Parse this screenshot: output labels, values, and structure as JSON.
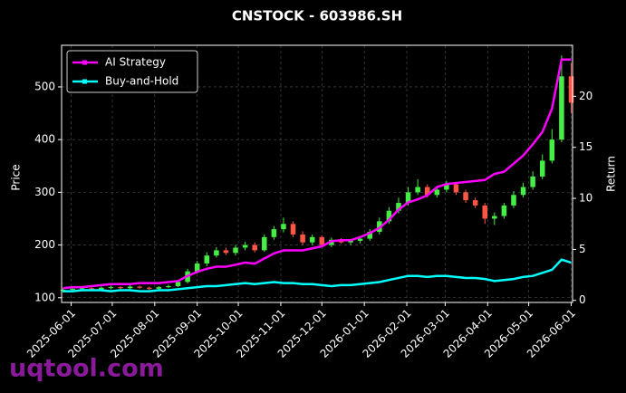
{
  "chart_data": {
    "type": "candlestick",
    "title": "CNSTOCK - 603986.SH",
    "ylabel": "Price",
    "y2label": "Return",
    "watermark": "uqtool.com",
    "x": [
      "2025-05-26",
      "2025-06-02",
      "2025-06-09",
      "2025-06-16",
      "2025-06-23",
      "2025-06-30",
      "2025-07-07",
      "2025-07-14",
      "2025-07-21",
      "2025-07-28",
      "2025-08-04",
      "2025-08-11",
      "2025-08-18",
      "2025-08-25",
      "2025-09-01",
      "2025-09-08",
      "2025-09-15",
      "2025-09-22",
      "2025-09-29",
      "2025-10-06",
      "2025-10-13",
      "2025-10-20",
      "2025-10-27",
      "2025-11-03",
      "2025-11-10",
      "2025-11-17",
      "2025-11-24",
      "2025-12-01",
      "2025-12-08",
      "2025-12-15",
      "2025-12-22",
      "2025-12-29",
      "2026-01-05",
      "2026-01-12",
      "2026-01-19",
      "2026-01-26",
      "2026-02-02",
      "2026-02-09",
      "2026-02-16",
      "2026-02-23",
      "2026-03-02",
      "2026-03-09",
      "2026-03-16",
      "2026-03-23",
      "2026-03-30",
      "2026-04-06",
      "2026-04-13",
      "2026-04-20",
      "2026-04-27",
      "2026-05-04",
      "2026-05-11",
      "2026-05-18",
      "2026-05-25",
      "2026-06-01"
    ],
    "open": [
      113,
      115,
      117,
      118,
      116,
      119,
      120,
      118,
      121,
      119,
      117,
      120,
      122,
      130,
      150,
      165,
      180,
      190,
      185,
      195,
      200,
      190,
      215,
      230,
      240,
      220,
      205,
      215,
      200,
      210,
      205,
      208,
      212,
      225,
      245,
      265,
      280,
      300,
      310,
      295,
      305,
      315,
      300,
      285,
      275,
      250,
      255,
      275,
      295,
      310,
      330,
      360,
      400,
      520
    ],
    "high": [
      118,
      119,
      120,
      120,
      121,
      123,
      122,
      124,
      123,
      121,
      122,
      125,
      133,
      155,
      170,
      186,
      196,
      195,
      200,
      206,
      205,
      220,
      236,
      252,
      245,
      226,
      220,
      218,
      214,
      213,
      211,
      215,
      230,
      252,
      272,
      290,
      310,
      325,
      315,
      312,
      322,
      320,
      305,
      290,
      280,
      262,
      280,
      302,
      318,
      340,
      372,
      420,
      560,
      545
    ],
    "low": [
      110,
      112,
      114,
      113,
      113,
      116,
      115,
      116,
      117,
      115,
      114,
      118,
      120,
      127,
      146,
      160,
      176,
      181,
      180,
      190,
      186,
      187,
      210,
      224,
      215,
      200,
      200,
      196,
      196,
      203,
      200,
      203,
      208,
      220,
      240,
      260,
      275,
      295,
      290,
      290,
      300,
      295,
      280,
      270,
      240,
      238,
      250,
      270,
      290,
      305,
      325,
      355,
      395,
      450
    ],
    "close": [
      115,
      117,
      118,
      116,
      119,
      120,
      118,
      121,
      119,
      117,
      120,
      122,
      130,
      150,
      165,
      180,
      190,
      185,
      195,
      200,
      190,
      215,
      230,
      240,
      220,
      205,
      215,
      200,
      210,
      205,
      208,
      212,
      225,
      245,
      265,
      280,
      300,
      310,
      295,
      305,
      315,
      300,
      285,
      275,
      250,
      255,
      275,
      295,
      310,
      330,
      360,
      400,
      520,
      470
    ],
    "up_color": "#44ee44",
    "down_color": "#ff5544",
    "series": [
      {
        "name": "AI Strategy",
        "color": "#ff00ff",
        "axis": "y2",
        "values": [
          1.2,
          1.3,
          1.3,
          1.4,
          1.5,
          1.6,
          1.6,
          1.6,
          1.7,
          1.7,
          1.7,
          1.8,
          1.9,
          2.4,
          2.8,
          3.1,
          3.3,
          3.3,
          3.5,
          3.7,
          3.6,
          4.1,
          4.6,
          4.9,
          4.9,
          4.9,
          5.1,
          5.3,
          5.8,
          5.9,
          5.9,
          6.2,
          6.6,
          7.1,
          7.9,
          8.9,
          9.6,
          9.9,
          10.3,
          11.1,
          11.4,
          11.5,
          11.6,
          11.7,
          11.8,
          12.4,
          12.6,
          13.4,
          14.2,
          15.3,
          16.5,
          18.8,
          23.6,
          23.6
        ]
      },
      {
        "name": "Buy-and-Hold",
        "color": "#00ffff",
        "axis": "y2",
        "values": [
          0.9,
          0.9,
          1.0,
          1.0,
          1.0,
          0.9,
          1.0,
          1.0,
          0.9,
          0.9,
          1.0,
          1.0,
          1.1,
          1.2,
          1.3,
          1.4,
          1.4,
          1.5,
          1.6,
          1.7,
          1.6,
          1.7,
          1.8,
          1.7,
          1.7,
          1.6,
          1.6,
          1.5,
          1.4,
          1.5,
          1.5,
          1.6,
          1.7,
          1.8,
          2.0,
          2.2,
          2.4,
          2.4,
          2.3,
          2.4,
          2.4,
          2.3,
          2.2,
          2.2,
          2.1,
          1.9,
          2.0,
          2.1,
          2.3,
          2.4,
          2.7,
          3.0,
          4.0,
          3.7
        ]
      }
    ],
    "xlim": [
      "2025-05-25",
      "2026-06-02"
    ],
    "xticks": [
      "2025-06-01",
      "2025-07-01",
      "2025-08-01",
      "2025-09-01",
      "2025-10-01",
      "2025-11-01",
      "2025-12-01",
      "2026-01-01",
      "2026-02-01",
      "2026-03-01",
      "2026-04-01",
      "2026-05-01",
      "2026-06-01"
    ],
    "ylim": [
      91,
      579
    ],
    "yticks": [
      100,
      200,
      300,
      400,
      500
    ],
    "y2lim": [
      -0.2,
      25
    ],
    "y2ticks": [
      0,
      5,
      10,
      15,
      20
    ],
    "grid": true,
    "legend": "upper left"
  }
}
